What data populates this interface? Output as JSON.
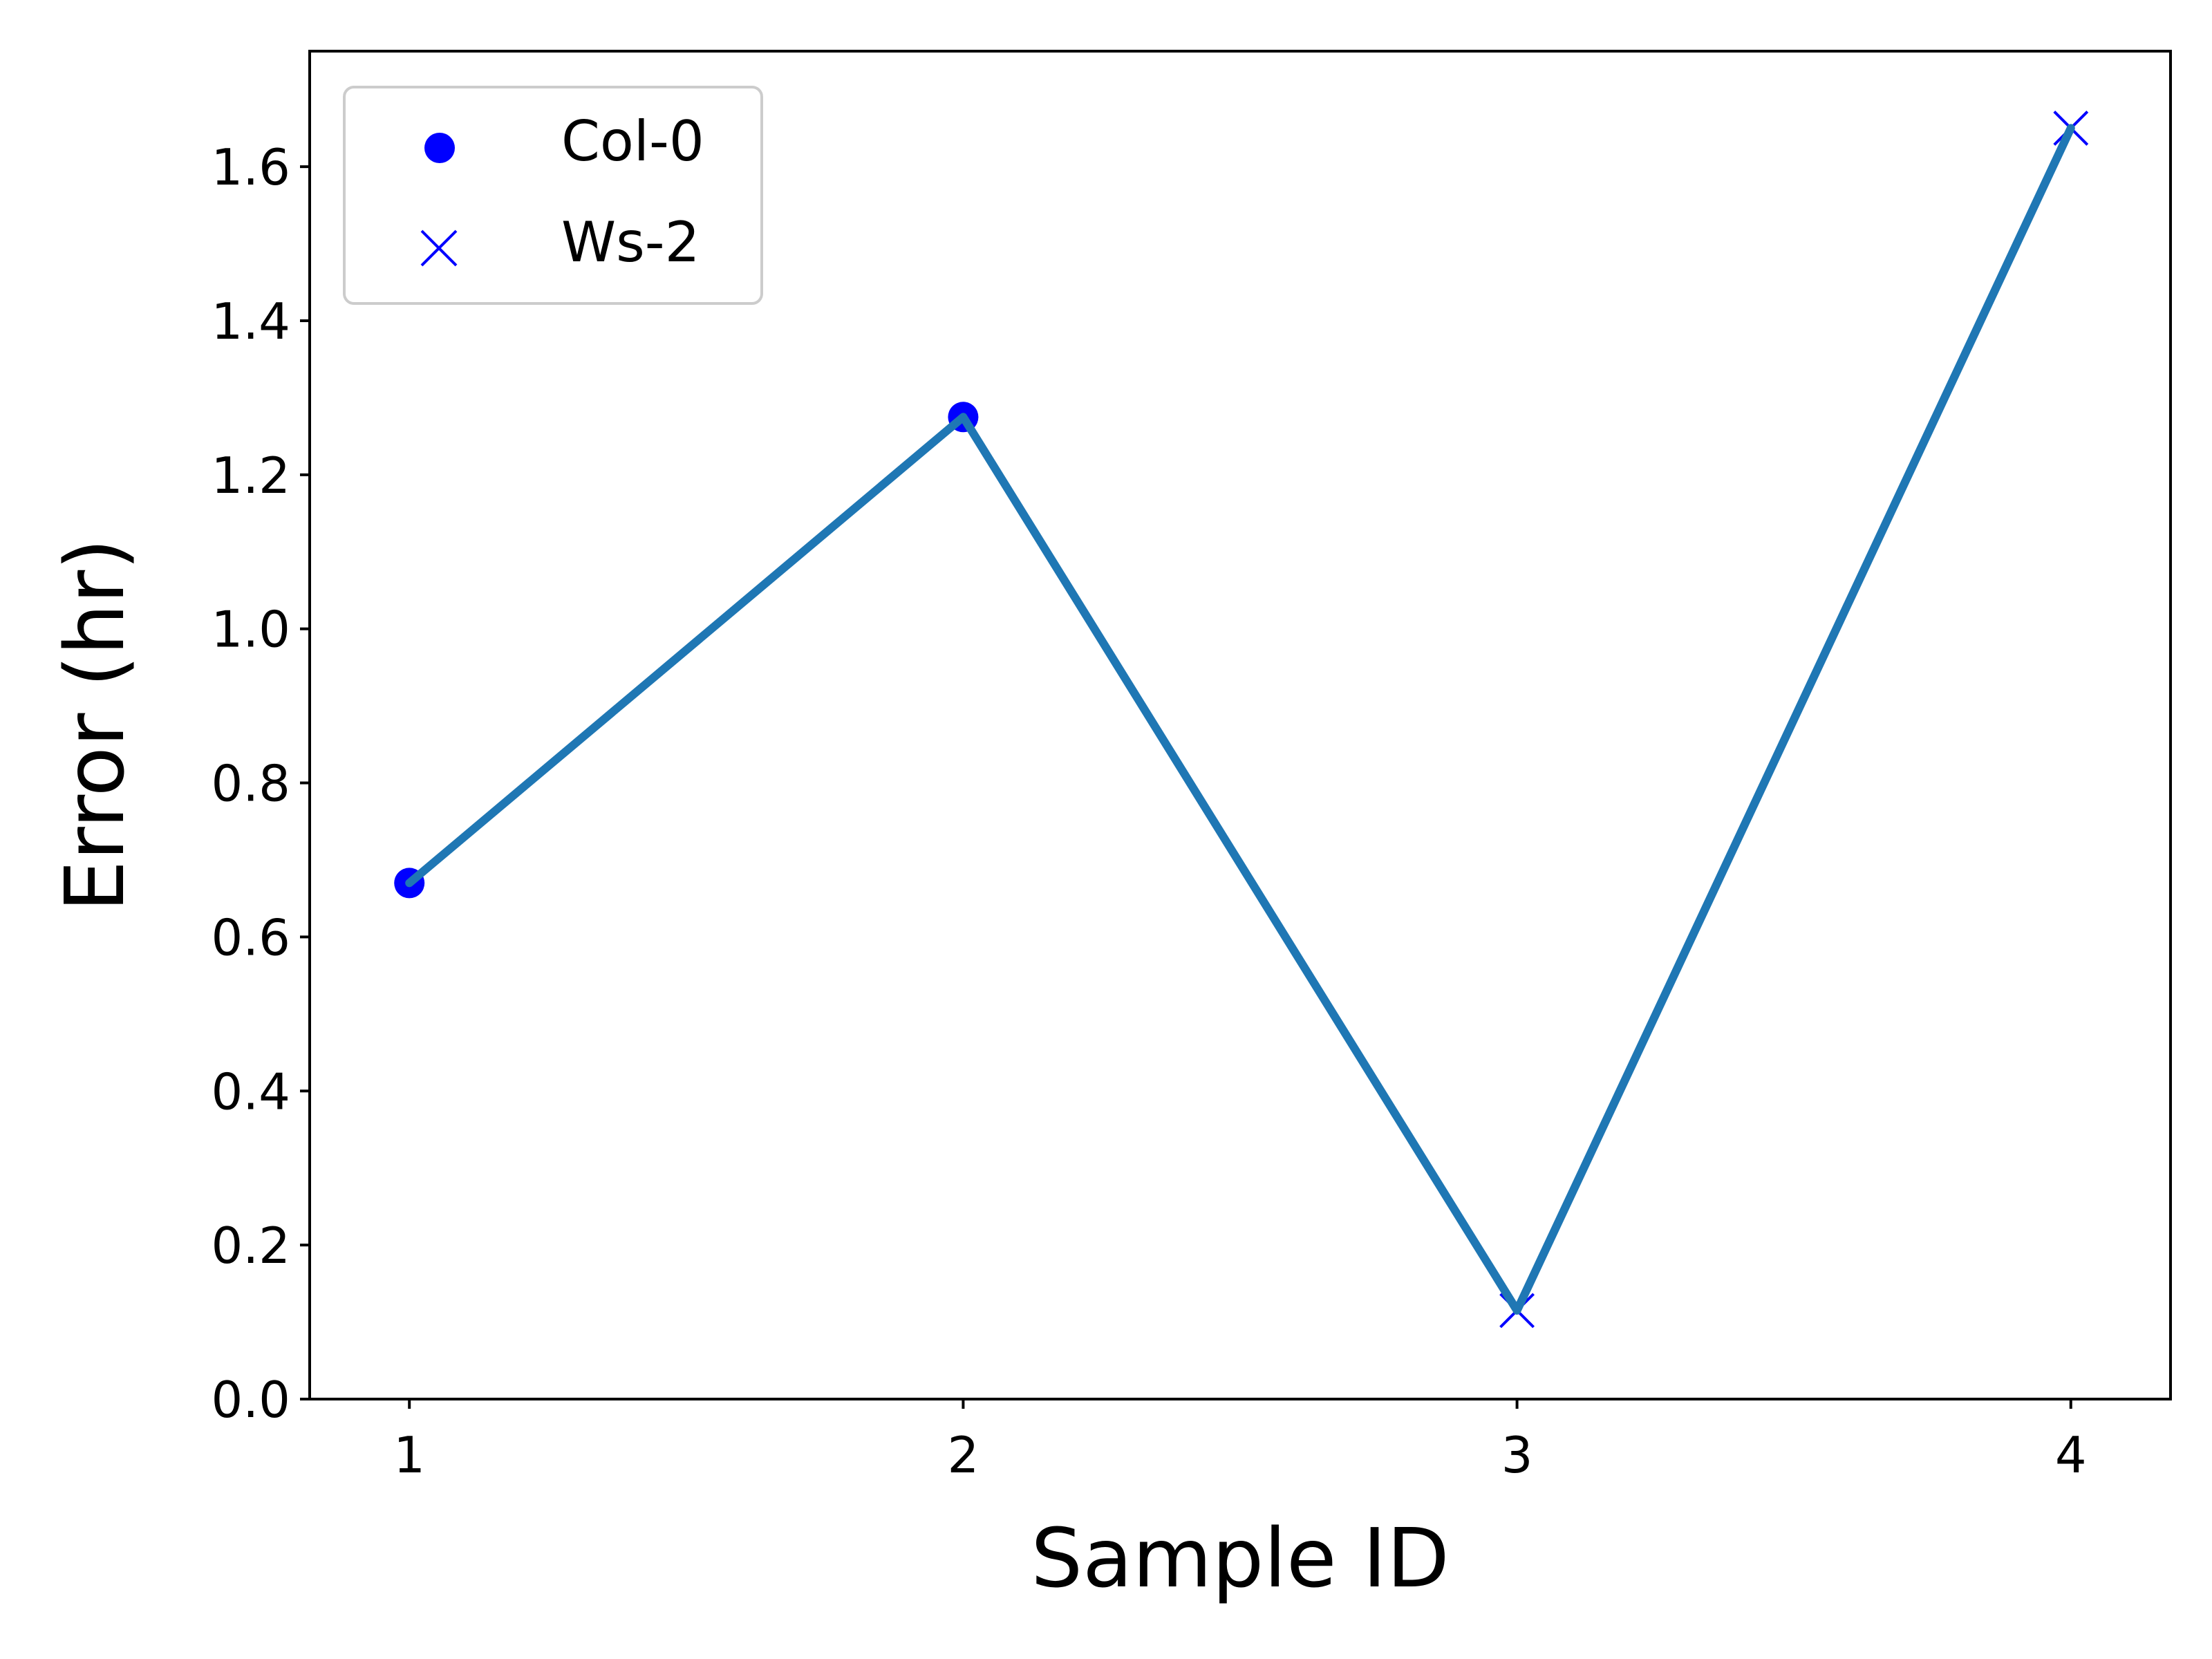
{
  "chart_data": {
    "type": "line",
    "xlabel": "Sample ID",
    "ylabel": "Error (hr)",
    "xlim": [
      0.82,
      4.18
    ],
    "ylim": [
      0.0,
      1.75
    ],
    "x_ticks": [
      "1",
      "2",
      "3",
      "4"
    ],
    "y_ticks": [
      "0.0",
      "0.2",
      "0.4",
      "0.6",
      "0.8",
      "1.0",
      "1.2",
      "1.4",
      "1.6"
    ],
    "grid": false,
    "legend_position": "top-left",
    "line": {
      "x": [
        1,
        2,
        3,
        4
      ],
      "y": [
        0.67,
        1.275,
        0.115,
        1.65
      ],
      "color": "#1f77b4"
    },
    "series": [
      {
        "name": "Col-0",
        "marker": "circle",
        "color": "#0000ff",
        "x": [
          1,
          2
        ],
        "y": [
          0.67,
          1.275
        ]
      },
      {
        "name": "Ws-2",
        "marker": "x",
        "color": "#0000ff",
        "x": [
          3,
          4
        ],
        "y": [
          0.115,
          1.65
        ]
      }
    ]
  }
}
